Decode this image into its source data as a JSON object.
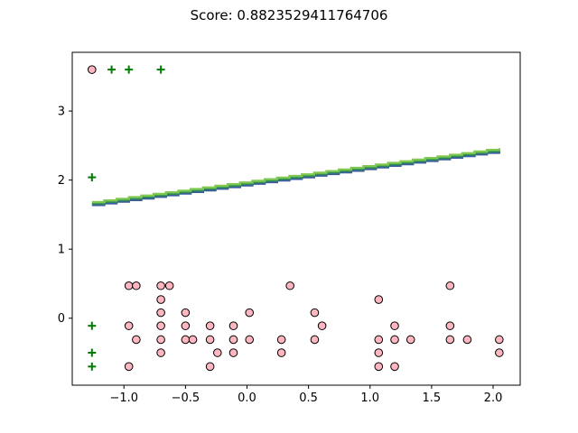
{
  "chart_data": {
    "type": "scatter",
    "title": "Score: 0.8823529411764706",
    "xlabel": "",
    "ylabel": "",
    "xlim": [
      -1.42,
      2.22
    ],
    "ylim": [
      -0.97,
      3.85
    ],
    "grid": false,
    "x_ticks": [
      -1.0,
      -0.5,
      0.0,
      0.5,
      1.0,
      1.5,
      2.0
    ],
    "x_tick_labels": [
      "−1.0",
      "−0.5",
      "0.0",
      "0.5",
      "1.0",
      "1.5",
      "2.0"
    ],
    "y_ticks": [
      0,
      1,
      2,
      3
    ],
    "y_tick_labels": [
      "0",
      "1",
      "2",
      "3"
    ],
    "boundary_line": {
      "x": [
        -1.26,
        2.05
      ],
      "y": [
        1.66,
        2.44
      ],
      "step_width": 0.101,
      "colors": [
        "#3b5aa0",
        "#2e8b57",
        "#7ec850"
      ]
    },
    "series": [
      {
        "marker": "plus",
        "color": "#007a00",
        "points": [
          [
            -1.26,
            3.6
          ],
          [
            -1.1,
            3.6
          ],
          [
            -0.96,
            3.6
          ],
          [
            -0.7,
            3.6
          ],
          [
            -1.26,
            2.04
          ],
          [
            -1.26,
            -0.11
          ],
          [
            -1.26,
            -0.5
          ],
          [
            -1.26,
            -0.7
          ]
        ]
      },
      {
        "marker": "circle",
        "color": "#ffb6c1",
        "edge_color": "#000000",
        "points": [
          [
            -1.26,
            3.6
          ],
          [
            -0.96,
            0.47
          ],
          [
            -0.9,
            0.47
          ],
          [
            -0.7,
            0.47
          ],
          [
            -0.63,
            0.47
          ],
          [
            0.35,
            0.47
          ],
          [
            1.65,
            0.47
          ],
          [
            -0.7,
            0.27
          ],
          [
            1.07,
            0.27
          ],
          [
            -0.7,
            0.08
          ],
          [
            -0.5,
            0.08
          ],
          [
            0.02,
            0.08
          ],
          [
            0.55,
            0.08
          ],
          [
            -0.96,
            -0.11
          ],
          [
            -0.7,
            -0.11
          ],
          [
            -0.5,
            -0.11
          ],
          [
            -0.3,
            -0.11
          ],
          [
            -0.11,
            -0.11
          ],
          [
            0.61,
            -0.11
          ],
          [
            1.2,
            -0.11
          ],
          [
            1.65,
            -0.11
          ],
          [
            -0.9,
            -0.31
          ],
          [
            -0.7,
            -0.31
          ],
          [
            -0.5,
            -0.31
          ],
          [
            -0.44,
            -0.31
          ],
          [
            -0.3,
            -0.31
          ],
          [
            -0.11,
            -0.31
          ],
          [
            0.02,
            -0.31
          ],
          [
            0.28,
            -0.31
          ],
          [
            0.55,
            -0.31
          ],
          [
            1.07,
            -0.31
          ],
          [
            1.2,
            -0.31
          ],
          [
            1.33,
            -0.31
          ],
          [
            1.65,
            -0.31
          ],
          [
            1.79,
            -0.31
          ],
          [
            2.05,
            -0.31
          ],
          [
            -0.7,
            -0.5
          ],
          [
            -0.24,
            -0.5
          ],
          [
            -0.11,
            -0.5
          ],
          [
            0.28,
            -0.5
          ],
          [
            1.07,
            -0.5
          ],
          [
            2.05,
            -0.5
          ],
          [
            -0.96,
            -0.7
          ],
          [
            -0.3,
            -0.7
          ],
          [
            1.07,
            -0.7
          ],
          [
            1.2,
            -0.7
          ]
        ]
      }
    ]
  }
}
